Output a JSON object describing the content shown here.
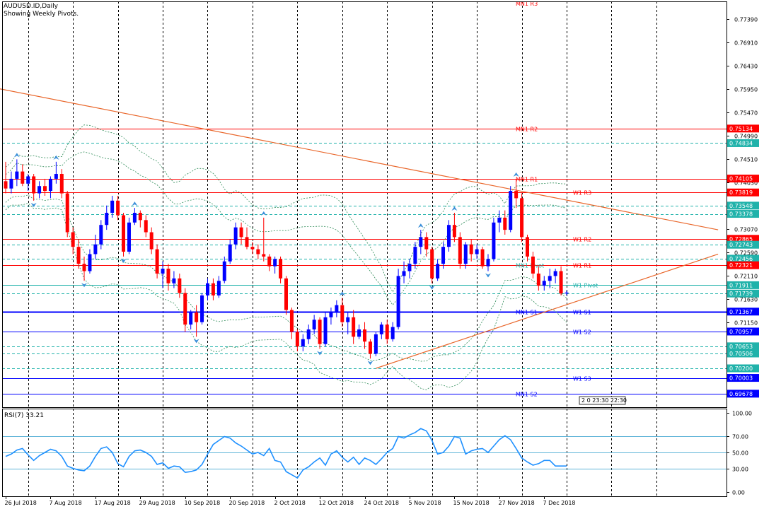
{
  "header": {
    "symbol_line": "AUDUSD.ID,Daily",
    "sub_line": "Showing Weekly Pivots."
  },
  "rsi_label": "RSI(7) 33.21",
  "timer_text": "2 0 23:30 22:30",
  "colors": {
    "bull": "#0000ff",
    "bear": "#ff0000",
    "trend": "#e9662a",
    "pivot_red": "#ff0000",
    "pivot_blue": "#0000ff",
    "pivot_teal": "#20b2aa",
    "envelope": "#2e8b57",
    "fractal": "#3a8fd9",
    "rsi_line": "#1e90ff",
    "rsi_level": "#5fb4d8"
  },
  "chart_data": {
    "type": "candlestick",
    "ylim": [
      0.694,
      0.7775
    ],
    "y_ticks": [
      "0.77390",
      "0.76910",
      "0.76430",
      "0.75950",
      "0.75470",
      "0.74990",
      "0.74510",
      "0.74030",
      "0.73070",
      "0.72590",
      "0.72110",
      "0.71630",
      "0.71150",
      "0.70670",
      "0.70190"
    ],
    "x_ticks": [
      {
        "label": "26 Jul 2018",
        "bar": 0
      },
      {
        "label": "7 Aug 2018",
        "bar": 8
      },
      {
        "label": "17 Aug 2018",
        "bar": 16
      },
      {
        "label": "29 Aug 2018",
        "bar": 24
      },
      {
        "label": "10 Sep 2018",
        "bar": 32
      },
      {
        "label": "20 Sep 2018",
        "bar": 40
      },
      {
        "label": "2 Oct 2018",
        "bar": 48
      },
      {
        "label": "12 Oct 2018",
        "bar": 56
      },
      {
        "label": "24 Oct 2018",
        "bar": 64
      },
      {
        "label": "5 Nov 2018",
        "bar": 72
      },
      {
        "label": "15 Nov 2018",
        "bar": 80
      },
      {
        "label": "27 Nov 2018",
        "bar": 88
      },
      {
        "label": "7 Dec 2018",
        "bar": 96
      }
    ],
    "candles": [
      [
        0.7405,
        0.7445,
        0.738,
        0.739
      ],
      [
        0.739,
        0.7425,
        0.738,
        0.741
      ],
      [
        0.741,
        0.745,
        0.7395,
        0.7425
      ],
      [
        0.7425,
        0.744,
        0.7395,
        0.74
      ],
      [
        0.74,
        0.742,
        0.7385,
        0.7415
      ],
      [
        0.7415,
        0.742,
        0.7365,
        0.738
      ],
      [
        0.738,
        0.7405,
        0.737,
        0.7395
      ],
      [
        0.7395,
        0.741,
        0.7375,
        0.7385
      ],
      [
        0.7385,
        0.7415,
        0.737,
        0.741
      ],
      [
        0.741,
        0.7445,
        0.74,
        0.742
      ],
      [
        0.742,
        0.743,
        0.737,
        0.738
      ],
      [
        0.738,
        0.7385,
        0.729,
        0.73
      ],
      [
        0.73,
        0.731,
        0.7255,
        0.727
      ],
      [
        0.727,
        0.7285,
        0.7225,
        0.7235
      ],
      [
        0.7235,
        0.725,
        0.72,
        0.722
      ],
      [
        0.722,
        0.7265,
        0.7215,
        0.7255
      ],
      [
        0.7255,
        0.7295,
        0.7245,
        0.7275
      ],
      [
        0.7275,
        0.7325,
        0.7265,
        0.7315
      ],
      [
        0.7315,
        0.7355,
        0.7305,
        0.734
      ],
      [
        0.734,
        0.7375,
        0.733,
        0.7365
      ],
      [
        0.7365,
        0.7375,
        0.7325,
        0.7335
      ],
      [
        0.7335,
        0.734,
        0.725,
        0.726
      ],
      [
        0.726,
        0.733,
        0.7255,
        0.732
      ],
      [
        0.732,
        0.735,
        0.7315,
        0.734
      ],
      [
        0.734,
        0.7345,
        0.731,
        0.7325
      ],
      [
        0.7325,
        0.7335,
        0.729,
        0.73
      ],
      [
        0.73,
        0.731,
        0.7255,
        0.7265
      ],
      [
        0.7265,
        0.7275,
        0.7205,
        0.7215
      ],
      [
        0.7215,
        0.724,
        0.7185,
        0.7225
      ],
      [
        0.7225,
        0.7235,
        0.718,
        0.7195
      ],
      [
        0.7195,
        0.722,
        0.7185,
        0.7205
      ],
      [
        0.7205,
        0.7215,
        0.7165,
        0.7175
      ],
      [
        0.7175,
        0.7185,
        0.7095,
        0.711
      ],
      [
        0.711,
        0.714,
        0.71,
        0.7135
      ],
      [
        0.7135,
        0.715,
        0.7085,
        0.7115
      ],
      [
        0.7115,
        0.7175,
        0.711,
        0.717
      ],
      [
        0.717,
        0.7205,
        0.716,
        0.7195
      ],
      [
        0.7195,
        0.7205,
        0.716,
        0.717
      ],
      [
        0.717,
        0.721,
        0.7165,
        0.72
      ],
      [
        0.72,
        0.725,
        0.7195,
        0.724
      ],
      [
        0.724,
        0.7285,
        0.7235,
        0.7275
      ],
      [
        0.7275,
        0.732,
        0.7265,
        0.731
      ],
      [
        0.731,
        0.732,
        0.7275,
        0.729
      ],
      [
        0.729,
        0.731,
        0.7265,
        0.727
      ],
      [
        0.727,
        0.728,
        0.7255,
        0.7265
      ],
      [
        0.7265,
        0.7275,
        0.7245,
        0.7255
      ],
      [
        0.7255,
        0.733,
        0.724,
        0.725
      ],
      [
        0.725,
        0.7255,
        0.722,
        0.723
      ],
      [
        0.723,
        0.725,
        0.7215,
        0.7245
      ],
      [
        0.7245,
        0.725,
        0.7195,
        0.7205
      ],
      [
        0.7205,
        0.721,
        0.713,
        0.714
      ],
      [
        0.714,
        0.7145,
        0.708,
        0.7095
      ],
      [
        0.7095,
        0.71,
        0.7055,
        0.7065
      ],
      [
        0.7065,
        0.709,
        0.7055,
        0.708
      ],
      [
        0.708,
        0.711,
        0.707,
        0.71
      ],
      [
        0.71,
        0.713,
        0.709,
        0.712
      ],
      [
        0.712,
        0.7125,
        0.706,
        0.707
      ],
      [
        0.707,
        0.7135,
        0.7065,
        0.7125
      ],
      [
        0.7125,
        0.7145,
        0.711,
        0.7135
      ],
      [
        0.7135,
        0.716,
        0.7125,
        0.715
      ],
      [
        0.715,
        0.7165,
        0.7105,
        0.7115
      ],
      [
        0.7115,
        0.7135,
        0.709,
        0.7125
      ],
      [
        0.7125,
        0.714,
        0.707,
        0.7085
      ],
      [
        0.7085,
        0.711,
        0.708,
        0.71
      ],
      [
        0.71,
        0.7115,
        0.706,
        0.7075
      ],
      [
        0.7075,
        0.708,
        0.704,
        0.705
      ],
      [
        0.705,
        0.7095,
        0.7045,
        0.709
      ],
      [
        0.709,
        0.7115,
        0.708,
        0.711
      ],
      [
        0.711,
        0.712,
        0.707,
        0.708
      ],
      [
        0.708,
        0.7115,
        0.7075,
        0.7105
      ],
      [
        0.7105,
        0.7225,
        0.71,
        0.721
      ],
      [
        0.721,
        0.724,
        0.7195,
        0.722
      ],
      [
        0.722,
        0.7245,
        0.7205,
        0.7235
      ],
      [
        0.7235,
        0.728,
        0.7225,
        0.727
      ],
      [
        0.727,
        0.7305,
        0.7255,
        0.729
      ],
      [
        0.729,
        0.73,
        0.725,
        0.7265
      ],
      [
        0.7265,
        0.727,
        0.7195,
        0.7205
      ],
      [
        0.7205,
        0.7245,
        0.72,
        0.7235
      ],
      [
        0.7235,
        0.728,
        0.7225,
        0.727
      ],
      [
        0.727,
        0.7325,
        0.726,
        0.7315
      ],
      [
        0.7315,
        0.734,
        0.728,
        0.729
      ],
      [
        0.729,
        0.73,
        0.7225,
        0.7235
      ],
      [
        0.7235,
        0.728,
        0.7225,
        0.7275
      ],
      [
        0.7275,
        0.7285,
        0.724,
        0.7255
      ],
      [
        0.7255,
        0.7275,
        0.7245,
        0.7265
      ],
      [
        0.7265,
        0.727,
        0.7225,
        0.723
      ],
      [
        0.723,
        0.7255,
        0.722,
        0.7245
      ],
      [
        0.7245,
        0.733,
        0.724,
        0.732
      ],
      [
        0.732,
        0.7345,
        0.73,
        0.733
      ],
      [
        0.733,
        0.7345,
        0.7295,
        0.7305
      ],
      [
        0.7305,
        0.7395,
        0.73,
        0.7385
      ],
      [
        0.7385,
        0.741,
        0.735,
        0.737
      ],
      [
        0.737,
        0.738,
        0.728,
        0.729
      ],
      [
        0.729,
        0.7295,
        0.724,
        0.725
      ],
      [
        0.725,
        0.726,
        0.7205,
        0.7215
      ],
      [
        0.7215,
        0.723,
        0.718,
        0.719
      ],
      [
        0.719,
        0.721,
        0.718,
        0.72
      ],
      [
        0.72,
        0.7225,
        0.7185,
        0.721
      ],
      [
        0.721,
        0.7225,
        0.7195,
        0.722
      ],
      [
        0.722,
        0.723,
        0.717,
        0.7174
      ],
      [
        0.7174,
        0.718,
        0.717,
        0.7176
      ]
    ],
    "price_lines": [
      {
        "price": 0.75134,
        "name": "MN1 R2",
        "tag": "0.75134",
        "style": "solid",
        "color": "red"
      },
      {
        "price": 0.74834,
        "tag": "0.74834",
        "style": "dash",
        "color": "teal"
      },
      {
        "price": 0.74105,
        "name": "MN1 R1",
        "tag": "0.74105",
        "style": "solid",
        "color": "red"
      },
      {
        "price": 0.73819,
        "name": "W1 R3",
        "tag": "0.73819",
        "style": "solid",
        "color": "red"
      },
      {
        "price": 0.73548,
        "tag": "0.73548",
        "style": "dash",
        "color": "teal"
      },
      {
        "price": 0.73378,
        "tag": "0.73378",
        "style": "dash",
        "color": "teal"
      },
      {
        "price": 0.72865,
        "name": "W1 R2",
        "tag": "0.72865",
        "style": "solid",
        "color": "red"
      },
      {
        "price": 0.72743,
        "tag": "0.72743",
        "style": "dash",
        "color": "teal"
      },
      {
        "price": 0.72456,
        "tag": "0.72456",
        "style": "dash",
        "color": "teal"
      },
      {
        "price": 0.72321,
        "name": "W1 R1",
        "tag": "0.72321",
        "style": "solid",
        "color": "red"
      },
      {
        "price": 0.71911,
        "name": "W1 Pivot",
        "tag": "0.71911",
        "style": "solid",
        "color": "teal"
      },
      {
        "price": 0.71739,
        "tag": "0.71739",
        "style": "dash",
        "color": "teal"
      },
      {
        "price": 0.71367,
        "name": "MN1 S1",
        "tag": "0.71367",
        "style": "solid",
        "color": "blue",
        "thick": true
      },
      {
        "price": 0.71367,
        "name": "W1 S1",
        "style": "none",
        "color": "blue"
      },
      {
        "price": 0.70957,
        "name": "W1 S2",
        "tag": "0.70957",
        "style": "solid",
        "color": "blue"
      },
      {
        "price": 0.70653,
        "tag": "0.70653",
        "style": "dash",
        "color": "teal"
      },
      {
        "price": 0.70506,
        "tag": "0.70506",
        "style": "dash",
        "color": "teal"
      },
      {
        "price": 0.702,
        "tag": "0.70200",
        "style": "dash",
        "color": "teal"
      },
      {
        "price": 0.70003,
        "name": "W1 S3",
        "tag": "0.70003",
        "style": "solid",
        "color": "blue"
      },
      {
        "price": 0.69678,
        "name": "MN1 S2",
        "tag": "0.69678",
        "style": "solid",
        "color": "blue"
      }
    ],
    "extra_labels": [
      {
        "text": "MN1 R3",
        "price": 0.7775,
        "bar": 91
      },
      {
        "text": "MN1 Pivot",
        "price": 0.7232,
        "bar": 91
      }
    ],
    "trendlines": [
      {
        "from": {
          "bar": -1,
          "price": 0.7595
        },
        "to": {
          "bar": 127,
          "price": 0.7305
        }
      },
      {
        "from": {
          "bar": 66,
          "price": 0.702
        },
        "to": {
          "bar": 127,
          "price": 0.7255
        }
      }
    ],
    "rsi": {
      "period": 7,
      "value": 33.21,
      "ylim": [
        -5,
        105
      ],
      "y_ticks": [
        100,
        70,
        50,
        30,
        0
      ],
      "levels": [
        70,
        50,
        30
      ],
      "values": [
        45,
        48,
        53,
        55,
        47,
        40,
        46,
        50,
        54,
        52,
        45,
        33,
        30,
        28,
        27,
        33,
        45,
        55,
        57,
        50,
        36,
        32,
        45,
        52,
        53,
        50,
        45,
        35,
        37,
        30,
        33,
        32,
        25,
        26,
        28,
        35,
        48,
        60,
        65,
        70,
        68,
        62,
        58,
        53,
        48,
        50,
        46,
        55,
        40,
        38,
        26,
        22,
        18,
        28,
        32,
        38,
        43,
        34,
        48,
        52,
        44,
        38,
        44,
        35,
        43,
        40,
        35,
        42,
        50,
        55,
        70,
        68,
        72,
        75,
        80,
        77,
        65,
        48,
        50,
        58,
        70,
        68,
        48,
        52,
        54,
        55,
        50,
        58,
        66,
        71,
        66,
        55,
        43,
        38,
        34,
        36,
        40,
        40,
        33,
        33,
        33
      ]
    }
  }
}
